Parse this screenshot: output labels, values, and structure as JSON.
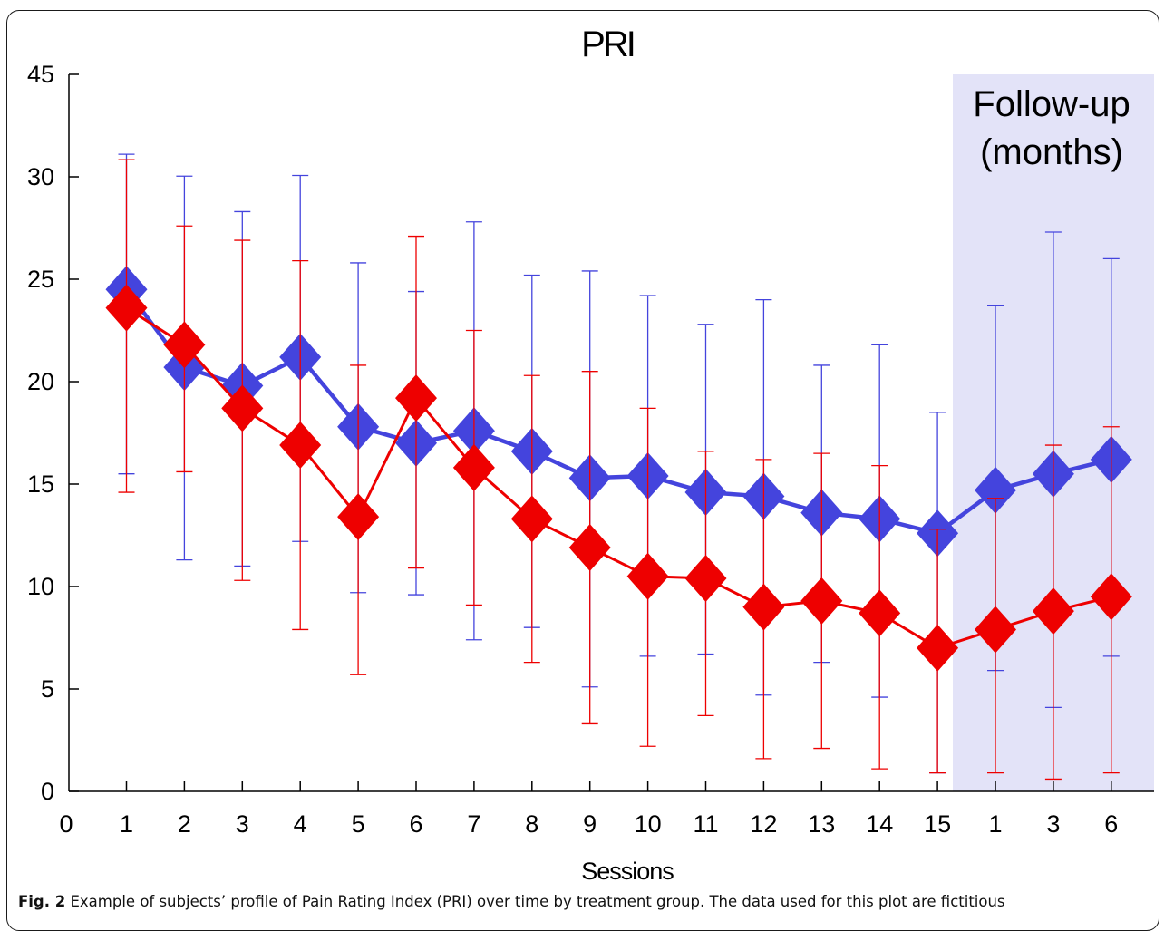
{
  "figure": {
    "caption_label": "Fig. 2",
    "caption_text": "Example of subjects’ profile of Pain Rating Index (PRI) over time by treatment group. The data used for this plot are fictitious"
  },
  "chart_data": {
    "type": "line",
    "title": "PRI",
    "xlabel": "Sessions",
    "ylabel": "",
    "y_ticks": [
      "0",
      "5",
      "10",
      "15",
      "20",
      "25",
      "30",
      "45"
    ],
    "x_ticks": [
      "0",
      "1",
      "2",
      "3",
      "4",
      "5",
      "6",
      "7",
      "8",
      "9",
      "10",
      "11",
      "12",
      "13",
      "14",
      "15",
      "1",
      "3",
      "6"
    ],
    "categories": [
      "1",
      "2",
      "3",
      "4",
      "5",
      "6",
      "7",
      "8",
      "9",
      "10",
      "11",
      "12",
      "13",
      "14",
      "15",
      "1",
      "3",
      "6"
    ],
    "annotation": {
      "lines": [
        "Follow-up",
        "(months)"
      ],
      "shade_color": "#e3e3f8",
      "spans_categories": [
        "1",
        "3",
        "6"
      ]
    },
    "grid": false,
    "series": [
      {
        "color": "#4444dd",
        "values": [
          24.5,
          20.7,
          19.8,
          21.2,
          17.8,
          17.0,
          17.6,
          16.6,
          15.3,
          15.4,
          14.6,
          14.4,
          13.6,
          13.3,
          12.6,
          14.7,
          15.5,
          16.2
        ],
        "upper": [
          33.3,
          30.1,
          28.3,
          30.2,
          25.8,
          24.4,
          27.8,
          25.2,
          25.4,
          24.2,
          22.8,
          24.0,
          20.8,
          21.8,
          18.5,
          23.7,
          27.3,
          26.0
        ],
        "lower": [
          15.5,
          11.3,
          11.0,
          12.2,
          9.7,
          9.6,
          7.4,
          8.0,
          5.1,
          6.6,
          6.7,
          4.7,
          6.3,
          4.6,
          0.9,
          5.9,
          4.1,
          6.6
        ]
      },
      {
        "color": "#ee0000",
        "values": [
          23.6,
          21.8,
          18.7,
          16.9,
          13.4,
          19.2,
          15.8,
          13.3,
          11.9,
          10.5,
          10.4,
          9.0,
          9.3,
          8.7,
          7.0,
          7.9,
          8.8,
          9.5
        ],
        "upper": [
          32.5,
          27.6,
          26.9,
          25.9,
          20.8,
          27.1,
          22.5,
          20.3,
          20.5,
          18.7,
          16.6,
          16.2,
          16.5,
          15.9,
          12.8,
          14.3,
          16.9,
          17.8
        ],
        "lower": [
          14.6,
          15.6,
          10.3,
          7.9,
          5.7,
          10.9,
          9.1,
          6.3,
          3.3,
          2.2,
          3.7,
          1.6,
          2.1,
          1.1,
          0.9,
          0.9,
          0.6,
          0.9
        ]
      }
    ]
  }
}
